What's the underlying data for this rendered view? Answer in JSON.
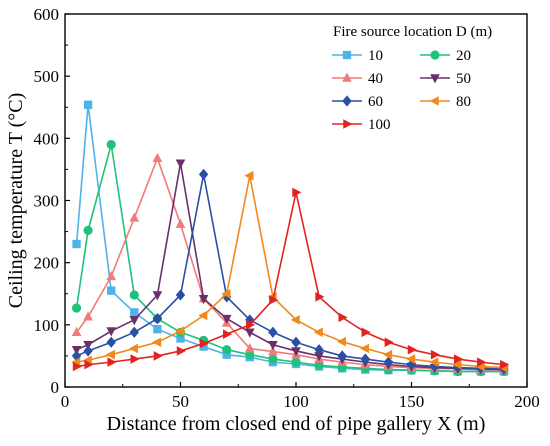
{
  "chart_data": {
    "type": "line",
    "xlabel": "Distance from closed end of pipe gallery X (m)",
    "ylabel": "Ceiling temperature T (°C)",
    "xlim": [
      0,
      200
    ],
    "ylim": [
      0,
      600
    ],
    "xticks": [
      "0",
      "50",
      "100",
      "150",
      "200"
    ],
    "yticks": [
      "0",
      "100",
      "200",
      "300",
      "400",
      "500",
      "600"
    ],
    "legend_title": "Fire source location D (m)",
    "legend_placement": "top-right",
    "grid": false,
    "x": [
      5,
      10,
      20,
      30,
      40,
      50,
      60,
      70,
      80,
      90,
      100,
      110,
      120,
      130,
      140,
      150,
      160,
      170,
      180,
      190
    ],
    "series": [
      {
        "name": "10",
        "color": "#4fb3e8",
        "marker": "square",
        "values": [
          230,
          454,
          155,
          120,
          93,
          78,
          65,
          52,
          48,
          40,
          37,
          33,
          30,
          28,
          27,
          27,
          26,
          25,
          25,
          25
        ]
      },
      {
        "name": "20",
        "color": "#1ec27a",
        "marker": "circle",
        "values": [
          127,
          252,
          390,
          148,
          110,
          88,
          75,
          60,
          52,
          45,
          40,
          35,
          32,
          30,
          28,
          27,
          26,
          25,
          25,
          25
        ]
      },
      {
        "name": "40",
        "color": "#f07b78",
        "marker": "triangle-up",
        "values": [
          88,
          113,
          178,
          272,
          368,
          262,
          142,
          103,
          62,
          57,
          52,
          45,
          40,
          36,
          33,
          31,
          30,
          29,
          28,
          27
        ]
      },
      {
        "name": "50",
        "color": "#6b2f6b",
        "marker": "triangle-down",
        "values": [
          60,
          68,
          90,
          108,
          148,
          360,
          142,
          110,
          88,
          68,
          58,
          50,
          45,
          40,
          36,
          33,
          31,
          30,
          29,
          28
        ]
      },
      {
        "name": "60",
        "color": "#2b4fa2",
        "marker": "diamond",
        "values": [
          50,
          58,
          72,
          88,
          110,
          148,
          342,
          145,
          108,
          88,
          72,
          60,
          50,
          45,
          40,
          36,
          33,
          31,
          30,
          29
        ]
      },
      {
        "name": "80",
        "color": "#f08a1c",
        "marker": "triangle-left",
        "values": [
          40,
          43,
          52,
          62,
          72,
          90,
          115,
          150,
          340,
          145,
          108,
          88,
          73,
          62,
          52,
          45,
          40,
          36,
          33,
          31
        ]
      },
      {
        "name": "100",
        "color": "#e3231f",
        "marker": "triangle-right",
        "values": [
          33,
          36,
          40,
          45,
          50,
          58,
          70,
          85,
          100,
          140,
          313,
          145,
          112,
          88,
          72,
          60,
          52,
          45,
          40,
          36
        ]
      }
    ]
  }
}
